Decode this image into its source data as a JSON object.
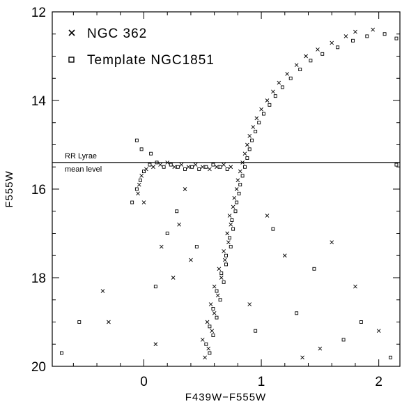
{
  "chart_data": {
    "type": "scatter",
    "title": "",
    "xlabel": "F439W−F555W",
    "ylabel": "F555W",
    "xlim": [
      -0.78,
      2.18
    ],
    "ylim": [
      20,
      12
    ],
    "y_inverted": true,
    "xticks": [
      {
        "v": 0,
        "label": "0"
      },
      {
        "v": 1,
        "label": "1"
      },
      {
        "v": 2,
        "label": "2"
      }
    ],
    "yticks": [
      {
        "v": 12,
        "label": "12"
      },
      {
        "v": 14,
        "label": "14"
      },
      {
        "v": 16,
        "label": "16"
      },
      {
        "v": 18,
        "label": "18"
      },
      {
        "v": 20,
        "label": "20"
      }
    ],
    "legend": {
      "placement": "top-left",
      "entries": [
        {
          "marker": "cross",
          "label": "NGC 362"
        },
        {
          "marker": "square",
          "label": "Template NGC1851"
        }
      ]
    },
    "reference_line": {
      "y": 15.4,
      "label_line1": "RR Lyrae",
      "label_line2": "mean level"
    },
    "series": [
      {
        "name": "NGC 362",
        "marker": "cross",
        "points": [
          [
            0.52,
            19.8
          ],
          [
            0.55,
            19.6
          ],
          [
            0.5,
            19.4
          ],
          [
            0.58,
            19.2
          ],
          [
            0.54,
            19.0
          ],
          [
            0.6,
            18.8
          ],
          [
            0.57,
            18.6
          ],
          [
            0.63,
            18.4
          ],
          [
            0.6,
            18.2
          ],
          [
            0.66,
            18.0
          ],
          [
            0.64,
            17.8
          ],
          [
            0.69,
            17.6
          ],
          [
            0.68,
            17.4
          ],
          [
            0.72,
            17.2
          ],
          [
            0.71,
            17.0
          ],
          [
            0.74,
            16.8
          ],
          [
            0.73,
            16.6
          ],
          [
            0.76,
            16.4
          ],
          [
            0.77,
            16.2
          ],
          [
            0.79,
            16.0
          ],
          [
            0.8,
            15.8
          ],
          [
            0.82,
            15.6
          ],
          [
            0.84,
            15.4
          ],
          [
            0.86,
            15.2
          ],
          [
            0.88,
            15.0
          ],
          [
            0.9,
            14.8
          ],
          [
            0.93,
            14.6
          ],
          [
            0.96,
            14.4
          ],
          [
            1.0,
            14.2
          ],
          [
            1.05,
            14.0
          ],
          [
            1.1,
            13.8
          ],
          [
            1.15,
            13.6
          ],
          [
            1.22,
            13.4
          ],
          [
            1.3,
            13.2
          ],
          [
            1.38,
            13.0
          ],
          [
            1.48,
            12.85
          ],
          [
            1.6,
            12.7
          ],
          [
            1.72,
            12.55
          ],
          [
            1.8,
            12.45
          ],
          [
            1.95,
            12.4
          ],
          [
            0.74,
            15.5
          ],
          [
            0.68,
            15.45
          ],
          [
            0.62,
            15.5
          ],
          [
            0.56,
            15.55
          ],
          [
            0.5,
            15.5
          ],
          [
            0.44,
            15.45
          ],
          [
            0.38,
            15.5
          ],
          [
            0.32,
            15.45
          ],
          [
            0.26,
            15.5
          ],
          [
            0.2,
            15.4
          ],
          [
            0.14,
            15.45
          ],
          [
            0.08,
            15.5
          ],
          [
            0.02,
            15.55
          ],
          [
            -0.02,
            15.7
          ],
          [
            -0.04,
            15.9
          ],
          [
            -0.05,
            16.1
          ],
          [
            0.0,
            16.3
          ],
          [
            0.3,
            16.8
          ],
          [
            0.15,
            17.3
          ],
          [
            0.4,
            17.6
          ],
          [
            0.25,
            18.0
          ],
          [
            1.2,
            17.5
          ],
          [
            1.6,
            17.2
          ],
          [
            1.8,
            18.2
          ],
          [
            2.0,
            19.2
          ],
          [
            1.5,
            19.6
          ],
          [
            0.1,
            19.5
          ],
          [
            -0.35,
            18.3
          ],
          [
            -0.3,
            19.0
          ],
          [
            0.9,
            18.6
          ],
          [
            1.35,
            19.8
          ],
          [
            0.35,
            16.0
          ],
          [
            1.05,
            16.6
          ]
        ]
      },
      {
        "name": "Template NGC1851",
        "marker": "square",
        "points": [
          [
            0.56,
            19.7
          ],
          [
            0.53,
            19.5
          ],
          [
            0.59,
            19.3
          ],
          [
            0.56,
            19.1
          ],
          [
            0.62,
            18.9
          ],
          [
            0.59,
            18.7
          ],
          [
            0.65,
            18.5
          ],
          [
            0.62,
            18.3
          ],
          [
            0.68,
            18.1
          ],
          [
            0.66,
            17.9
          ],
          [
            0.7,
            17.7
          ],
          [
            0.7,
            17.5
          ],
          [
            0.74,
            17.3
          ],
          [
            0.73,
            17.1
          ],
          [
            0.76,
            16.9
          ],
          [
            0.75,
            16.7
          ],
          [
            0.78,
            16.5
          ],
          [
            0.79,
            16.3
          ],
          [
            0.81,
            16.1
          ],
          [
            0.82,
            15.9
          ],
          [
            0.84,
            15.7
          ],
          [
            0.86,
            15.5
          ],
          [
            0.88,
            15.3
          ],
          [
            0.9,
            15.1
          ],
          [
            0.92,
            14.9
          ],
          [
            0.95,
            14.7
          ],
          [
            0.98,
            14.5
          ],
          [
            1.02,
            14.3
          ],
          [
            1.07,
            14.1
          ],
          [
            1.12,
            13.9
          ],
          [
            1.18,
            13.7
          ],
          [
            1.25,
            13.5
          ],
          [
            1.33,
            13.3
          ],
          [
            1.42,
            13.1
          ],
          [
            1.52,
            12.95
          ],
          [
            1.65,
            12.8
          ],
          [
            1.78,
            12.65
          ],
          [
            1.9,
            12.55
          ],
          [
            2.05,
            12.5
          ],
          [
            2.15,
            12.6
          ],
          [
            0.71,
            15.55
          ],
          [
            0.65,
            15.5
          ],
          [
            0.59,
            15.45
          ],
          [
            0.53,
            15.5
          ],
          [
            0.47,
            15.55
          ],
          [
            0.41,
            15.5
          ],
          [
            0.35,
            15.55
          ],
          [
            0.29,
            15.5
          ],
          [
            0.23,
            15.45
          ],
          [
            0.17,
            15.5
          ],
          [
            0.11,
            15.4
          ],
          [
            0.05,
            15.45
          ],
          [
            0.0,
            15.6
          ],
          [
            -0.03,
            15.8
          ],
          [
            -0.06,
            16.0
          ],
          [
            -0.1,
            16.3
          ],
          [
            -0.06,
            14.9
          ],
          [
            -0.02,
            15.1
          ],
          [
            0.06,
            15.2
          ],
          [
            0.2,
            17.0
          ],
          [
            0.45,
            17.3
          ],
          [
            0.1,
            18.2
          ],
          [
            1.3,
            18.8
          ],
          [
            1.7,
            19.4
          ],
          [
            2.1,
            19.8
          ],
          [
            1.45,
            17.8
          ],
          [
            2.15,
            15.45
          ],
          [
            -0.55,
            19.0
          ],
          [
            -0.7,
            19.7
          ],
          [
            0.95,
            19.2
          ],
          [
            1.1,
            16.9
          ],
          [
            0.28,
            16.5
          ],
          [
            1.85,
            19.0
          ]
        ]
      }
    ]
  }
}
